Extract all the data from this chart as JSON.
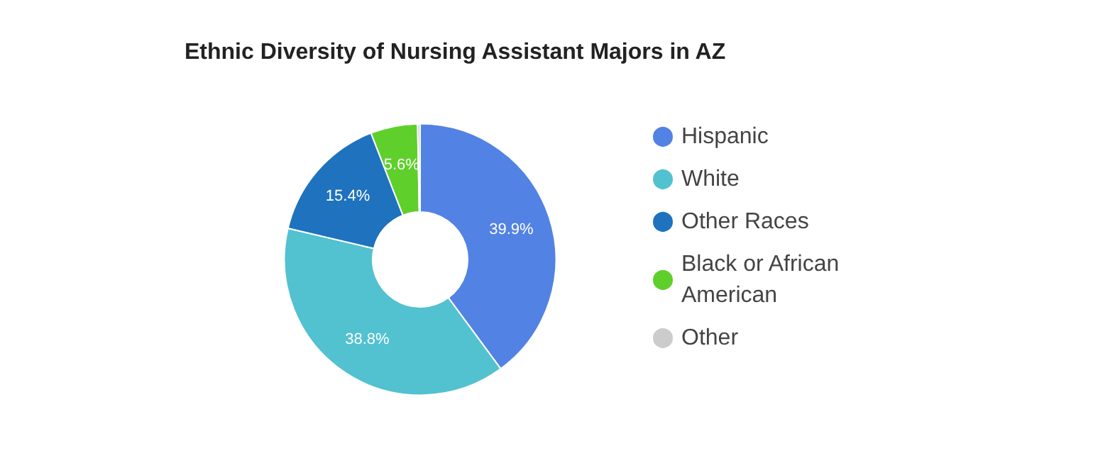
{
  "chart_data": {
    "type": "donut",
    "title": "Ethnic Diversity of Nursing Assistant Majors in AZ",
    "categories": [
      "Hispanic",
      "White",
      "Other Races",
      "Black or African American",
      "Other"
    ],
    "values": [
      39.9,
      38.8,
      15.4,
      5.6,
      0.3
    ],
    "colors": [
      "#5282e3",
      "#52c1d0",
      "#1e72be",
      "#5fcf2b",
      "#cccccc"
    ],
    "value_labels": [
      "39.9%",
      "38.8%",
      "15.4%",
      "5.6%",
      null
    ],
    "legend": "right"
  }
}
